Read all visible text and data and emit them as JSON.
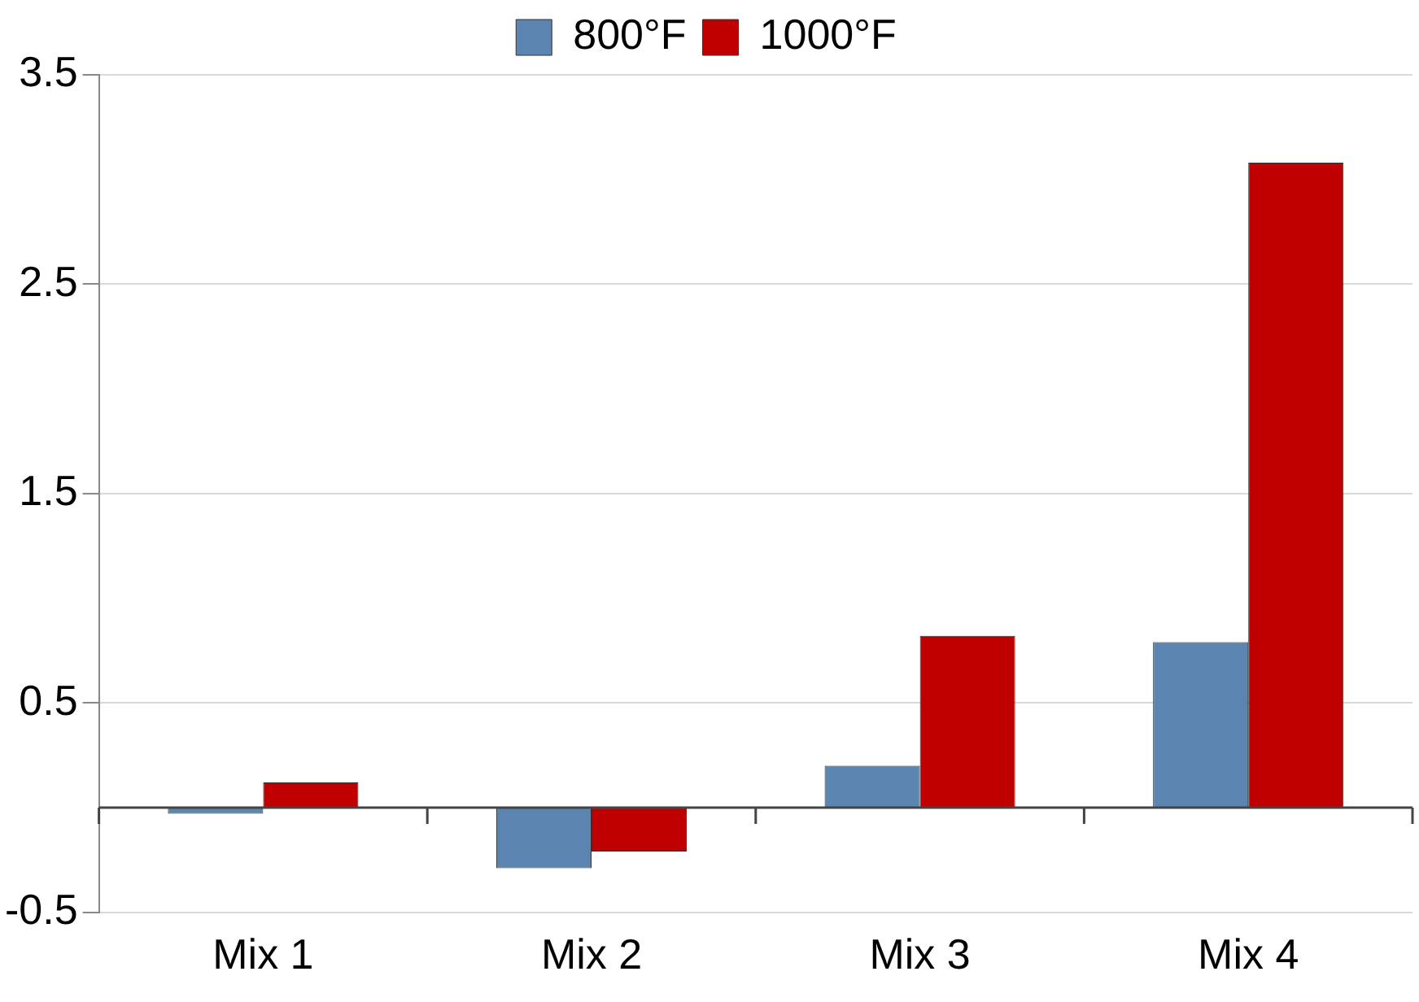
{
  "chart_data": {
    "type": "bar",
    "categories": [
      "Mix 1",
      "Mix 2",
      "Mix 3",
      "Mix 4"
    ],
    "series": [
      {
        "name": "800°F",
        "color": "#5b84b0",
        "values": [
          -0.03,
          -0.29,
          0.2,
          0.79
        ]
      },
      {
        "name": "1000°F",
        "color": "#c00000",
        "values": [
          0.12,
          -0.21,
          0.82,
          3.08
        ]
      }
    ],
    "ylim": [
      -0.5,
      3.5
    ],
    "yticks": [
      -0.5,
      0.5,
      1.5,
      2.5,
      3.5
    ],
    "grid": "y",
    "legend": "top"
  }
}
